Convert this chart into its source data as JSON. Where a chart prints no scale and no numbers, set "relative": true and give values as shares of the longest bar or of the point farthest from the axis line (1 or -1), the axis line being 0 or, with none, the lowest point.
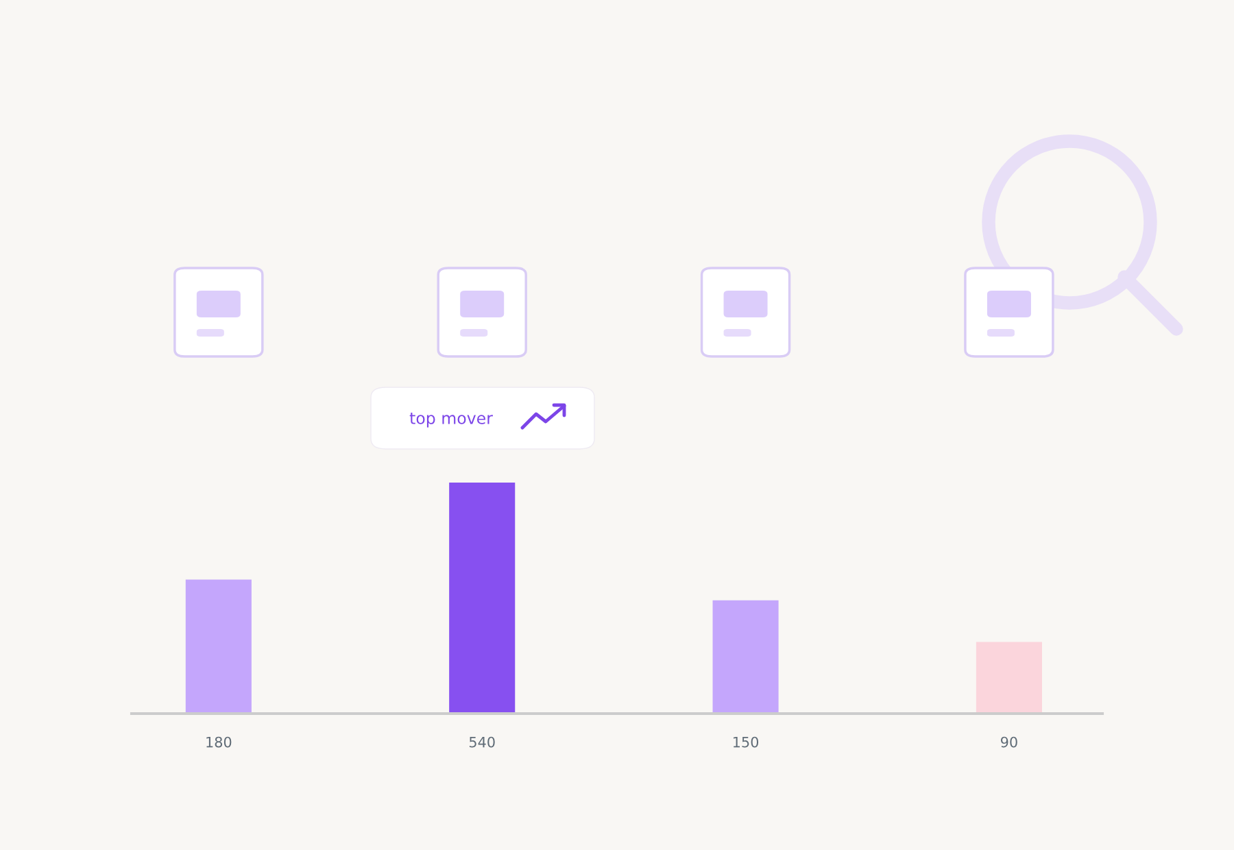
{
  "chart_data": {
    "type": "bar",
    "relative": true,
    "categories": [
      "180",
      "540",
      "150",
      "90"
    ],
    "values": [
      0.58,
      1,
      0.49,
      0.31
    ],
    "colors": [
      "#c4a6fc",
      "#8750f0",
      "#c4a6fc",
      "#fbd5dc"
    ],
    "annotations": [
      "top mover"
    ],
    "grid": false,
    "legend": false
  }
}
